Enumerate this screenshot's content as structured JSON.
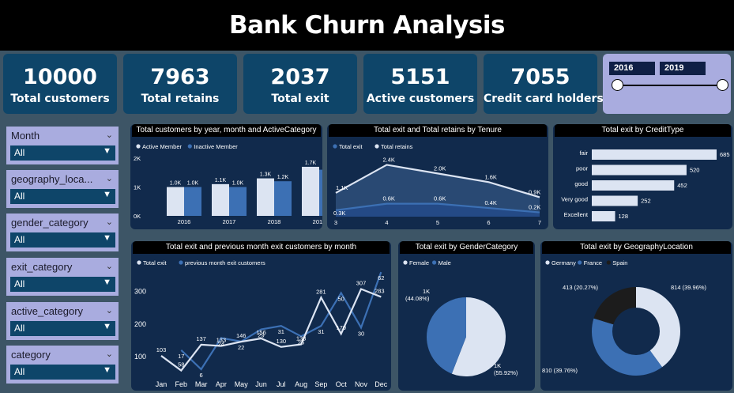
{
  "header": {
    "title": "Bank Churn Analysis"
  },
  "kpis": [
    {
      "value": "10000",
      "label": "Total customers"
    },
    {
      "value": "7963",
      "label": "Total retains"
    },
    {
      "value": "2037",
      "label": "Total exit"
    },
    {
      "value": "5151",
      "label": "Active customers"
    },
    {
      "value": "7055",
      "label": "Credit card holders"
    }
  ],
  "year_slicer": {
    "start": "2016",
    "end": "2019"
  },
  "filters": [
    {
      "label": "Month",
      "value": "All"
    },
    {
      "label": "geography_loca...",
      "value": "All"
    },
    {
      "label": "gender_category",
      "value": "All"
    },
    {
      "label": "exit_category",
      "value": "All"
    },
    {
      "label": "active_category",
      "value": "All"
    },
    {
      "label": "category",
      "value": "All"
    }
  ],
  "colors": {
    "light": "#dce4f2",
    "mid": "#3c70b4",
    "dark": "#1c1c1c",
    "panel": "#112a4c"
  },
  "chart_data": [
    {
      "type": "bar",
      "title": "Total customers by year, month and ActiveCategory",
      "categories": [
        "2016",
        "2017",
        "2018",
        "2019"
      ],
      "series": [
        {
          "name": "Active Member",
          "values": [
            1000,
            1100,
            1300,
            1700
          ],
          "labels": [
            "1.0K",
            "1.1K",
            "1.3K",
            "1.7K"
          ]
        },
        {
          "name": "Inactive Member",
          "values": [
            1000,
            1000,
            1200,
            1600
          ],
          "labels": [
            "1.0K",
            "1.0K",
            "1.2K",
            "1.6K"
          ]
        }
      ],
      "yticks": [
        "0K",
        "1K",
        "2K"
      ],
      "ylim": [
        0,
        2000
      ]
    },
    {
      "type": "area",
      "title": "Total exit and Total retains by Tenure",
      "x": [
        3,
        4,
        5,
        6,
        7
      ],
      "series": [
        {
          "name": "Total exit",
          "values": [
            300,
            600,
            600,
            400,
            200
          ],
          "labels": [
            "0.3K",
            "0.6K",
            "0.6K",
            "0.4K",
            "0.2K"
          ]
        },
        {
          "name": "Total retains",
          "values": [
            1100,
            2400,
            2000,
            1600,
            900
          ],
          "labels": [
            "1.1K",
            "2.4K",
            "2.0K",
            "1.6K",
            "0.9K"
          ]
        }
      ],
      "ylim": [
        0,
        2600
      ]
    },
    {
      "type": "bar",
      "orientation": "horizontal",
      "title": "Total exit by CreditType",
      "categories": [
        "fair",
        "poor",
        "good",
        "Very good",
        "Excellent"
      ],
      "values": [
        685,
        520,
        452,
        252,
        128
      ]
    },
    {
      "type": "line",
      "title": "Total exit and previous month exit customers by month",
      "categories": [
        "Jan",
        "Feb",
        "Mar",
        "Apr",
        "May",
        "Jun",
        "Jul",
        "Aug",
        "Sep",
        "Oct",
        "Nov",
        "Dec"
      ],
      "series": [
        {
          "name": "Total exit",
          "values": [
            103,
            58,
            137,
            133,
            146,
            156,
            130,
            138,
            281,
            170,
            307,
            283
          ]
        },
        {
          "name": "previous month exit customers",
          "values": [
            null,
            17,
            6,
            24,
            22,
            29,
            31,
            25,
            31,
            50,
            30,
            62
          ]
        }
      ],
      "yticks": [
        100,
        200,
        300
      ],
      "ylim": [
        40,
        330
      ]
    },
    {
      "type": "pie",
      "title": "Total exit by GenderCategory",
      "series": [
        {
          "name": "Female",
          "value": 55.92,
          "label": "1K (55.92%)"
        },
        {
          "name": "Male",
          "value": 44.08,
          "label": "1K (44.08%)"
        }
      ]
    },
    {
      "type": "pie",
      "donut": true,
      "title": "Total exit by GeographyLocation",
      "series": [
        {
          "name": "Germany",
          "value": 39.96,
          "label": "814 (39.96%)"
        },
        {
          "name": "France",
          "value": 39.76,
          "label": "810 (39.76%)"
        },
        {
          "name": "Spain",
          "value": 20.27,
          "label": "413 (20.27%)"
        }
      ]
    }
  ]
}
